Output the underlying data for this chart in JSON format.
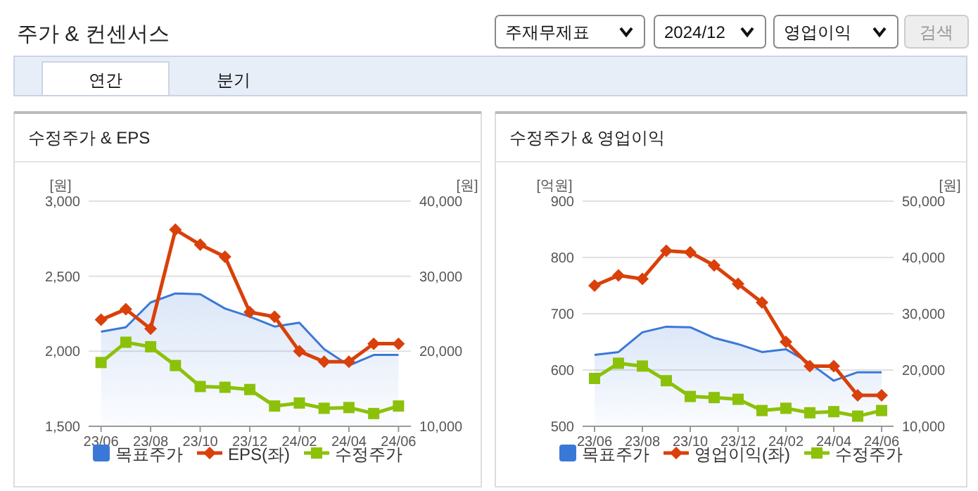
{
  "chart_data": [
    {
      "type": "other",
      "title": "주가 & 컨센서스",
      "annotations": [
        "주재무제표",
        "2024/12",
        "영업이익",
        "검색",
        "연간",
        "분기"
      ]
    },
    {
      "type": "line",
      "title": "수정주가 & EPS",
      "ylabel": "[원]",
      "y2label": "[원]",
      "categories": [
        "23/06",
        null,
        "23/08",
        null,
        "23/10",
        null,
        "23/12",
        null,
        "24/02",
        null,
        "24/04",
        null,
        "24/06"
      ],
      "series": [
        {
          "name": "목표주가",
          "type": "area",
          "axis": "y2",
          "color": "#3a78d8",
          "values": [
            22600,
            23200,
            26500,
            27700,
            27600,
            25700,
            24600,
            23300,
            23800,
            20300,
            18100,
            19500,
            19500
          ]
        },
        {
          "name": "EPS(좌)",
          "type": "line",
          "marker": "diamond",
          "color": "#d9400a",
          "values": [
            2210,
            2280,
            2150,
            2810,
            2710,
            2630,
            2260,
            2230,
            2000,
            1930,
            1930,
            2050,
            2050
          ]
        },
        {
          "name": "수정주가",
          "type": "line",
          "axis": "y2",
          "marker": "square",
          "color": "#8cc10a",
          "values": [
            18500,
            21200,
            20600,
            18100,
            15300,
            15200,
            14900,
            12700,
            13100,
            12400,
            12500,
            11700,
            12700
          ]
        }
      ],
      "ylim": [
        1500,
        3000
      ],
      "yticks": [
        {
          "value": 1500,
          "label": "1,500"
        },
        {
          "value": 2000,
          "label": "2,000"
        },
        {
          "value": 2500,
          "label": "2,500"
        },
        {
          "value": 3000,
          "label": "3,000"
        }
      ],
      "y2lim": [
        10000,
        40000
      ],
      "y2ticks": [
        {
          "value": 10000,
          "label": "10,000"
        },
        {
          "value": 20000,
          "label": "20,000"
        },
        {
          "value": 30000,
          "label": "30,000"
        },
        {
          "value": 40000,
          "label": "40,000"
        }
      ],
      "grid": "y",
      "legend": "bottom"
    },
    {
      "type": "line",
      "title": "수정주가 & 영업이익",
      "ylabel": "[억원]",
      "y2label": "[원]",
      "categories": [
        "23/06",
        null,
        "23/08",
        null,
        "23/10",
        null,
        "23/12",
        null,
        "24/02",
        null,
        "24/04",
        null,
        "24/06"
      ],
      "series": [
        {
          "name": "목표주가",
          "type": "area",
          "axis": "y2",
          "color": "#3a78d8",
          "values": [
            22700,
            23200,
            26700,
            27700,
            27600,
            25700,
            24600,
            23200,
            23700,
            21200,
            18100,
            19600,
            19600
          ]
        },
        {
          "name": "영업이익(좌)",
          "type": "line",
          "marker": "diamond",
          "color": "#d9400a",
          "values": [
            750,
            768,
            762,
            812,
            809,
            786,
            753,
            720,
            650,
            607,
            607,
            555,
            555
          ]
        },
        {
          "name": "수정주가",
          "type": "line",
          "axis": "y2",
          "marker": "square",
          "color": "#8cc10a",
          "values": [
            18500,
            21200,
            20700,
            18100,
            15300,
            15100,
            14800,
            12800,
            13200,
            12400,
            12600,
            11800,
            12800
          ]
        }
      ],
      "ylim": [
        500,
        900
      ],
      "yticks": [
        500,
        600,
        700,
        800,
        900
      ],
      "y2lim": [
        10000,
        50000
      ],
      "y2ticks": [
        {
          "value": 10000,
          "label": "10,000"
        },
        {
          "value": 20000,
          "label": "20,000"
        },
        {
          "value": 30000,
          "label": "30,000"
        },
        {
          "value": 40000,
          "label": "40,000"
        },
        {
          "value": 50000,
          "label": "50,000"
        }
      ],
      "grid": "y",
      "legend": "bottom"
    }
  ]
}
